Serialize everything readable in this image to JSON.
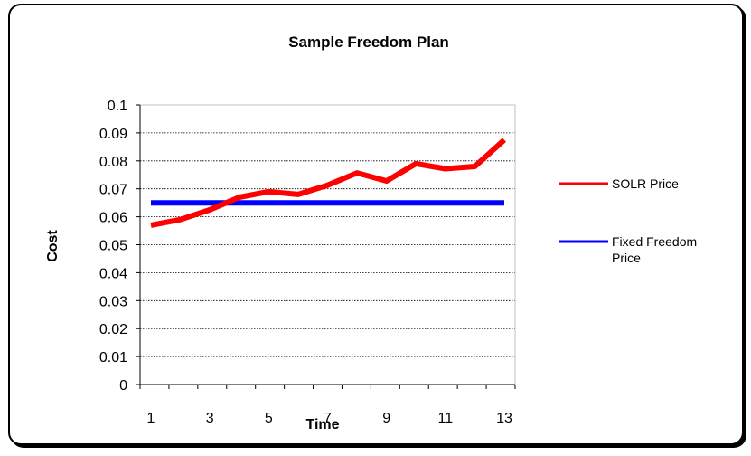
{
  "chart_data": {
    "type": "line",
    "title": "Sample Freedom Plan",
    "xlabel": "Time",
    "ylabel": "Cost",
    "x": [
      1,
      2,
      3,
      4,
      5,
      6,
      7,
      8,
      9,
      10,
      11,
      12,
      13
    ],
    "x_tick_labels": [
      "1",
      "3",
      "5",
      "7",
      "9",
      "11",
      "13"
    ],
    "y_tick_labels": [
      "0",
      "0.01",
      "0.02",
      "0.03",
      "0.04",
      "0.05",
      "0.06",
      "0.07",
      "0.08",
      "0.09",
      "0.1"
    ],
    "ylim": [
      0,
      0.1
    ],
    "grid": true,
    "legend_position": "right",
    "series": [
      {
        "name": "SOLR Price",
        "color": "#ff0000",
        "values": [
          0.057,
          0.059,
          0.0625,
          0.067,
          0.069,
          0.068,
          0.0713,
          0.0757,
          0.0728,
          0.079,
          0.0772,
          0.078,
          0.0875
        ]
      },
      {
        "name_lines": [
          "Fixed Freedom",
          "Price"
        ],
        "name": "Fixed Freedom Price",
        "color": "#0000ff",
        "values": [
          0.065,
          0.065,
          0.065,
          0.065,
          0.065,
          0.065,
          0.065,
          0.065,
          0.065,
          0.065,
          0.065,
          0.065,
          0.065
        ]
      }
    ]
  }
}
